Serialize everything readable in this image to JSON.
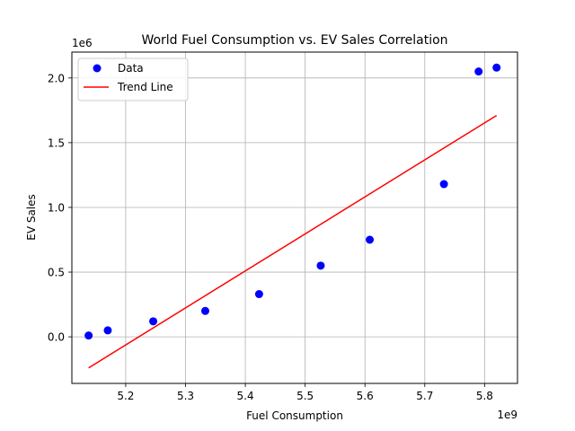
{
  "chart_data": {
    "type": "scatter",
    "title": "World Fuel Consumption vs. EV Sales Correlation",
    "xlabel": "Fuel Consumption",
    "ylabel": "EV Sales",
    "x_offset_label": "1e9",
    "y_offset_label": "1e6",
    "xlim": [
      5.11,
      5.855
    ],
    "ylim": [
      -0.36,
      2.2
    ],
    "x_ticks": [
      5.2,
      5.3,
      5.4,
      5.5,
      5.6,
      5.7,
      5.8
    ],
    "x_tick_labels": [
      "5.2",
      "5.3",
      "5.4",
      "5.5",
      "5.6",
      "5.7",
      "5.8"
    ],
    "y_ticks": [
      0.0,
      0.5,
      1.0,
      1.5,
      2.0
    ],
    "y_tick_labels": [
      "0.0",
      "0.5",
      "1.0",
      "1.5",
      "2.0"
    ],
    "grid": true,
    "legend_position": "top-left",
    "series": [
      {
        "name": "Data",
        "kind": "scatter",
        "color": "#0000ff",
        "x": [
          5.138,
          5.17,
          5.246,
          5.333,
          5.423,
          5.526,
          5.608,
          5.732,
          5.79,
          5.82
        ],
        "y": [
          0.01,
          0.05,
          0.12,
          0.2,
          0.33,
          0.55,
          0.75,
          1.18,
          2.05,
          2.08
        ]
      },
      {
        "name": "Trend Line",
        "kind": "line",
        "color": "#ff0000",
        "x": [
          5.138,
          5.82
        ],
        "y": [
          -0.24,
          1.71
        ]
      }
    ]
  }
}
